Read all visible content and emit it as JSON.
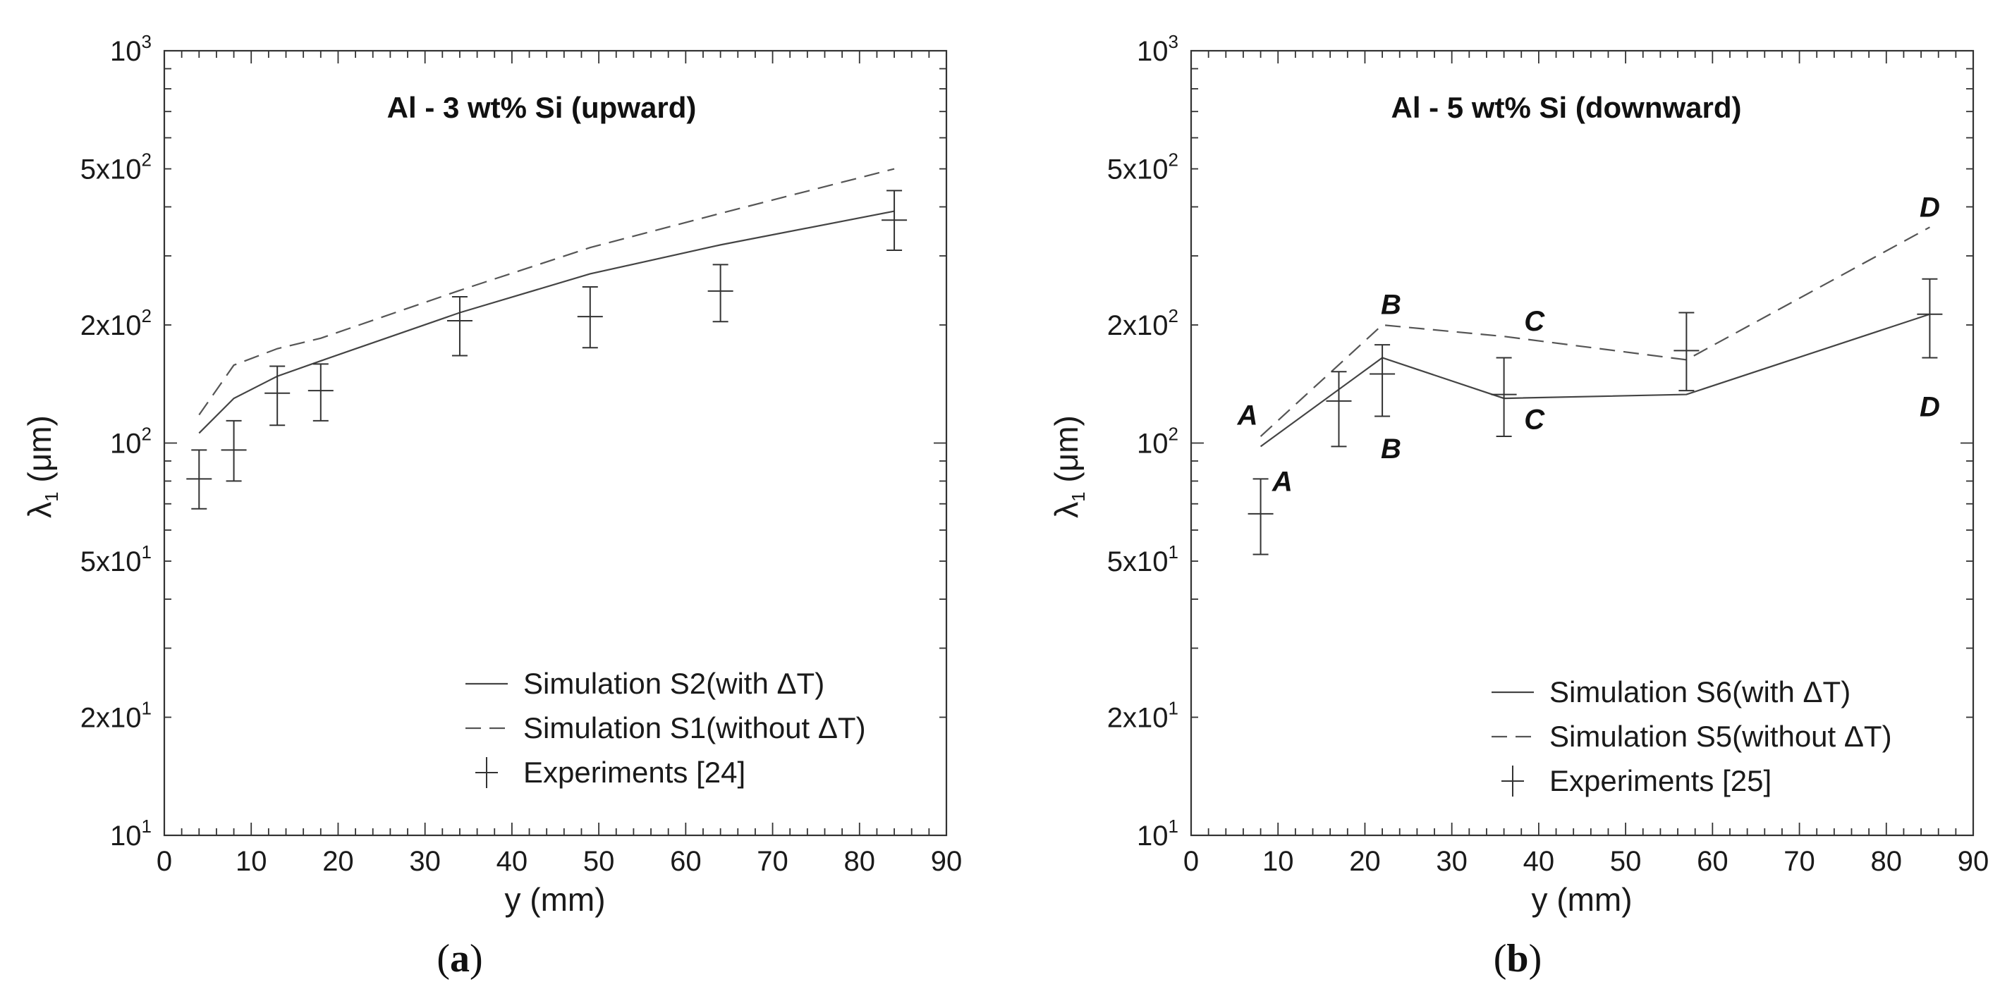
{
  "chart_data": [
    {
      "type": "line",
      "title": "Al - 3 wt% Si (upward)",
      "caption": "a",
      "xlabel": "y (mm)",
      "ylabel": "λ1 (μm)",
      "xlim": [
        0,
        90
      ],
      "ylim": [
        10,
        1000
      ],
      "yscale": "log",
      "xticks": [
        0,
        10,
        20,
        30,
        40,
        50,
        60,
        70,
        80,
        90
      ],
      "yticks": [
        {
          "value": 10,
          "mant": "",
          "base": "10",
          "exp": "1"
        },
        {
          "value": 20,
          "mant": "2x",
          "base": "10",
          "exp": "1"
        },
        {
          "value": 50,
          "mant": "5x",
          "base": "10",
          "exp": "1"
        },
        {
          "value": 100,
          "mant": "",
          "base": "10",
          "exp": "2"
        },
        {
          "value": 200,
          "mant": "2x",
          "base": "10",
          "exp": "2"
        },
        {
          "value": 500,
          "mant": "5x",
          "base": "10",
          "exp": "2"
        },
        {
          "value": 1000,
          "mant": "",
          "base": "10",
          "exp": "3"
        }
      ],
      "legend_position": "bottom-right",
      "series": [
        {
          "name": "Simulation S2",
          "legend_label": "Simulation S2(with ΔT)",
          "style": "solid",
          "x": [
            4,
            8,
            13,
            18,
            34,
            49,
            64,
            84
          ],
          "y": [
            106,
            130,
            148,
            162,
            215,
            270,
            320,
            390
          ]
        },
        {
          "name": "Simulation S1",
          "legend_label": "Simulation S1(without ΔT)",
          "style": "dashed",
          "x": [
            4,
            8,
            13,
            18,
            34,
            49,
            64,
            84
          ],
          "y": [
            118,
            158,
            174,
            185,
            245,
            315,
            385,
            500
          ]
        },
        {
          "name": "Experiments [24]",
          "legend_label": "Experiments [24]",
          "style": "errorbar",
          "x": [
            4,
            8,
            13,
            18,
            34,
            49,
            64,
            84
          ],
          "y": [
            81,
            96,
            134,
            136,
            205,
            210,
            244,
            370
          ],
          "err_low": [
            68,
            80,
            111,
            114,
            167,
            175,
            204,
            310
          ],
          "err_high": [
            96,
            114,
            157,
            159,
            236,
            250,
            285,
            440
          ]
        }
      ],
      "annotations": []
    },
    {
      "type": "line",
      "title": "Al - 5 wt% Si (downward)",
      "caption": "b",
      "xlabel": "y (mm)",
      "ylabel": "λ1 (μm)",
      "xlim": [
        0,
        90
      ],
      "ylim": [
        10,
        1000
      ],
      "yscale": "log",
      "xticks": [
        0,
        10,
        20,
        30,
        40,
        50,
        60,
        70,
        80,
        90
      ],
      "yticks": [
        {
          "value": 10,
          "mant": "",
          "base": "10",
          "exp": "1"
        },
        {
          "value": 20,
          "mant": "2x",
          "base": "10",
          "exp": "1"
        },
        {
          "value": 50,
          "mant": "5x",
          "base": "10",
          "exp": "1"
        },
        {
          "value": 100,
          "mant": "",
          "base": "10",
          "exp": "2"
        },
        {
          "value": 200,
          "mant": "2x",
          "base": "10",
          "exp": "2"
        },
        {
          "value": 500,
          "mant": "5x",
          "base": "10",
          "exp": "2"
        },
        {
          "value": 1000,
          "mant": "",
          "base": "10",
          "exp": "3"
        }
      ],
      "legend_position": "bottom-right",
      "series": [
        {
          "name": "Simulation S6",
          "legend_label": "Simulation S6(with ΔT)",
          "style": "solid",
          "x": [
            8,
            22,
            36,
            57,
            85
          ],
          "y": [
            98,
            165,
            130,
            133,
            213
          ]
        },
        {
          "name": "Simulation S5",
          "legend_label": "Simulation S5(without ΔT)",
          "style": "dashed",
          "x": [
            8,
            22,
            36,
            57,
            85
          ],
          "y": [
            104,
            200,
            187,
            163,
            355
          ]
        },
        {
          "name": "Experiments [25]",
          "legend_label": "Experiments [25]",
          "style": "errorbar",
          "x": [
            8,
            17,
            22,
            36,
            57,
            85
          ],
          "y": [
            66,
            128,
            150,
            133,
            172,
            213
          ],
          "err_low": [
            52,
            98,
            117,
            104,
            136,
            165
          ],
          "err_high": [
            81,
            152,
            178,
            165,
            215,
            262
          ]
        }
      ],
      "annotations": [
        {
          "text": "A",
          "x": 6.5,
          "y": 118
        },
        {
          "text": "A",
          "x": 10.5,
          "y": 80
        },
        {
          "text": "B",
          "x": 23,
          "y": 226
        },
        {
          "text": "B",
          "x": 23,
          "y": 97
        },
        {
          "text": "C",
          "x": 39.5,
          "y": 205
        },
        {
          "text": "C",
          "x": 39.5,
          "y": 115
        },
        {
          "text": "D",
          "x": 85,
          "y": 400
        },
        {
          "text": "D",
          "x": 85,
          "y": 124
        }
      ]
    }
  ]
}
